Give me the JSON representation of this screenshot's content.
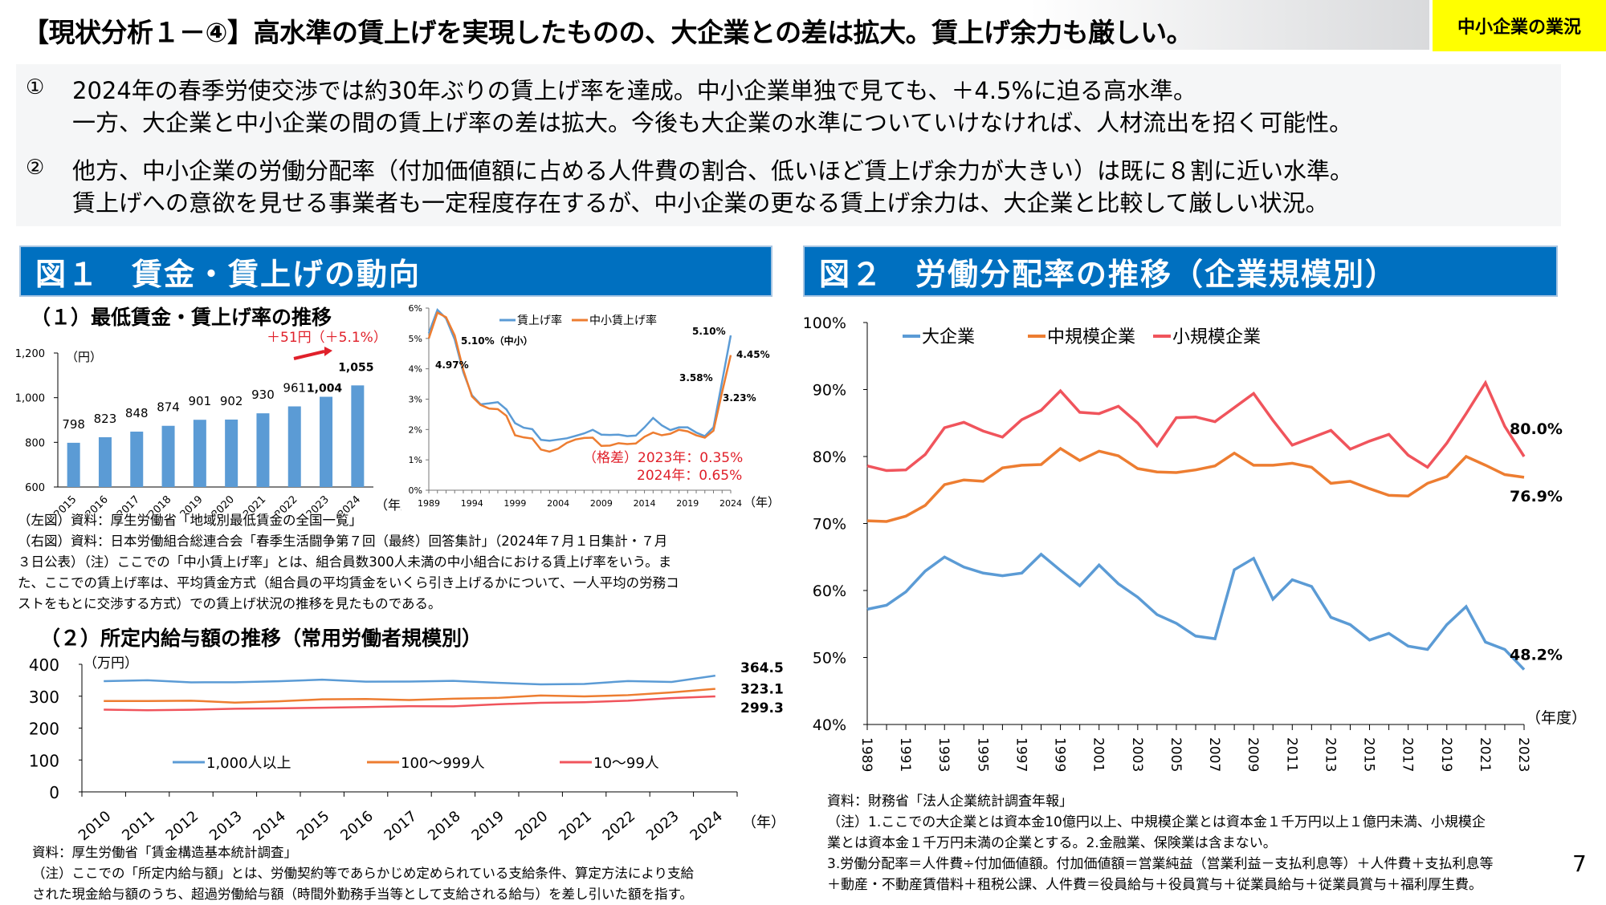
{
  "header": {
    "title": "【現状分析１－④】高水準の賃上げを実現したものの、大企業との差は拡大。賃上げ余力も厳しい。",
    "tag": "中小企業の業況"
  },
  "summary": {
    "items": [
      {
        "marker": "①",
        "lines": [
          "2024年の春季労使交渉では約30年ぶりの賃上げ率を達成。中小企業単独で見ても、＋4.5%に迫る高水準。",
          "一方、大企業と中小企業の間の賃上げ率の差は拡大。今後も大企業の水準についていけなければ、人材流出を招く可能性。"
        ]
      },
      {
        "marker": "②",
        "lines": [
          "他方、中小企業の労働分配率（付加価値額に占める人件費の割合、低いほど賃上げ余力が大きい）は既に８割に近い水準。",
          "賃上げへの意欲を見せる事業者も一定程度存在するが、中小企業の更なる賃上げ余力は、大企業と比較して厳しい状況。"
        ]
      }
    ]
  },
  "fig1": {
    "header": "図１　賃金・賃上げの動向",
    "sub1": "（１）最低賃金・賃上げ率の推移",
    "sub2": "（２）所定内給与額の推移（常用労働者規模別）",
    "notes1": [
      "（左図）資料：厚生労働省「地域別最低賃金の全国一覧」",
      "（右図）資料：日本労働組合総連合会「春季生活闘争第７回（最終）回答集計」（2024年７月１日集計・７月",
      "３日公表）（注）ここでの「中小賃上げ率」とは、組合員数300人未満の中小組合における賃上げ率をいう。ま",
      "た、ここでの賃上げ率は、平均賃金方式（組合員の平均賃金をいくら引き上げるかについて、一人平均の労務コ",
      "ストをもとに交渉する方式）での賃上げ状況の推移を見たものである。"
    ],
    "notes2": [
      "資料：厚生労働省「賃金構造基本統計調査」",
      "（注）ここでの「所定内給与額」とは、労働契約等であらかじめ定められている支給条件、算定方法により支給",
      "された現金給与額のうち、超過労働給与額（時間外勤務手当等として支給される給与）を差し引いた額を指す。"
    ]
  },
  "fig2": {
    "header": "図２　労働分配率の推移（企業規模別）",
    "notes": [
      "資料：財務省「法人企業統計調査年報」",
      "（注）1.ここでの大企業とは資本金10億円以上、中規模企業とは資本金１千万円以上１億円未満、小規模企",
      "業とは資本金１千万円未満の企業とする。2.金融業、保険業は含まない。",
      "3.労働分配率＝人件費÷付加価値額。付加価値額＝営業純益（営業利益－支払利息等）＋人件費＋支払利息等",
      "＋動産・不動産賃借料＋租税公課、人件費＝役員給与＋役員賞与＋従業員給与＋従業員賞与＋福利厚生費。"
    ]
  },
  "page_number": "7",
  "colors": {
    "blue": "#5b9bd5",
    "orange": "#ed7d31",
    "red": "#f0545c",
    "header_blue": "#0070c0",
    "annot_red": "#e0202a",
    "tag_yellow": "#ffff00"
  },
  "chart_data": [
    {
      "id": "min-wage",
      "type": "bar",
      "title": "最低賃金",
      "categories": [
        "2015",
        "2016",
        "2017",
        "2018",
        "2019",
        "2020",
        "2021",
        "2022",
        "2023",
        "2024"
      ],
      "values": [
        798,
        823,
        848,
        874,
        901,
        902,
        930,
        961,
        1004,
        1055
      ],
      "data_labels": [
        "798",
        "823",
        "848",
        "874",
        "901",
        "902",
        "930",
        "961",
        "1,004",
        "1,055"
      ],
      "ylim": [
        600,
        1200
      ],
      "yticks": [
        "600",
        "800",
        "1,000",
        "1,200"
      ],
      "ylabel": "（円）",
      "xlabel": "（年度）",
      "annotation": "＋51円（＋5.1%）"
    },
    {
      "id": "wage-increase-rate",
      "type": "line",
      "x": [
        1989,
        1990,
        1991,
        1992,
        1993,
        1994,
        1995,
        1996,
        1997,
        1998,
        1999,
        2000,
        2001,
        2002,
        2003,
        2004,
        2005,
        2006,
        2007,
        2008,
        2009,
        2010,
        2011,
        2012,
        2013,
        2014,
        2015,
        2016,
        2017,
        2018,
        2019,
        2020,
        2021,
        2022,
        2023,
        2024
      ],
      "series": [
        {
          "name": "賃上げ率",
          "values": [
            5.17,
            5.94,
            5.66,
            4.97,
            3.89,
            3.13,
            2.83,
            2.86,
            2.9,
            2.66,
            2.21,
            2.06,
            2.01,
            1.66,
            1.63,
            1.67,
            1.71,
            1.79,
            1.87,
            1.99,
            1.83,
            1.82,
            1.83,
            1.78,
            1.8,
            2.07,
            2.38,
            2.14,
            1.98,
            2.07,
            2.07,
            1.9,
            1.78,
            2.07,
            3.58,
            5.1
          ]
        },
        {
          "name": "中小賃上げ率",
          "values": [
            5.0,
            5.85,
            5.7,
            5.1,
            3.96,
            3.09,
            2.81,
            2.69,
            2.67,
            2.45,
            1.81,
            1.74,
            1.7,
            1.34,
            1.27,
            1.37,
            1.56,
            1.67,
            1.72,
            1.73,
            1.46,
            1.47,
            1.55,
            1.52,
            1.54,
            1.76,
            1.9,
            1.81,
            1.86,
            1.99,
            1.94,
            1.81,
            1.73,
            1.96,
            3.23,
            4.45
          ]
        }
      ],
      "ylim": [
        0,
        6
      ],
      "yticks": [
        "0%",
        "1%",
        "2%",
        "3%",
        "4%",
        "5%",
        "6%"
      ],
      "xticks": [
        "1989",
        "1994",
        "1999",
        "2004",
        "2009",
        "2014",
        "2019",
        "2024"
      ],
      "xlabel": "（年）",
      "data_labels": {
        "a": "5.10%（中小）",
        "b": "4.97%",
        "c": "5.10%",
        "d": "4.45%",
        "e": "3.58%",
        "f": "3.23%"
      },
      "annotation": [
        "（格差）2023年：0.35%",
        "2024年：0.65%"
      ]
    },
    {
      "id": "scheduled-wage",
      "type": "line",
      "x": [
        "2010",
        "2011",
        "2012",
        "2013",
        "2014",
        "2015",
        "2016",
        "2017",
        "2018",
        "2019",
        "2020",
        "2021",
        "2022",
        "2023",
        "2024"
      ],
      "series": [
        {
          "name": "1,000人以上",
          "values": [
            347.2,
            349.9,
            343.5,
            343.8,
            346.7,
            351.8,
            345.7,
            346.0,
            348.1,
            342.1,
            337.2,
            338.4,
            347.6,
            344.8,
            364.5
          ]
        },
        {
          "name": "100～999人",
          "values": [
            285.0,
            285.0,
            286.0,
            280.0,
            283.9,
            290.1,
            291.2,
            288.0,
            292.2,
            294.5,
            302.1,
            299.5,
            303.3,
            312.0,
            323.1
          ]
        },
        {
          "name": "10～99人",
          "values": [
            258.0,
            256.0,
            257.6,
            260.8,
            262.0,
            263.7,
            266.1,
            268.6,
            268.2,
            274.4,
            279.4,
            281.2,
            285.9,
            294.0,
            299.3
          ]
        }
      ],
      "ylim": [
        0,
        400
      ],
      "yticks": [
        "0",
        "100",
        "200",
        "300",
        "400"
      ],
      "ylabel": "（万円）",
      "xlabel": "（年）",
      "end_labels": [
        "364.5",
        "323.1",
        "299.3"
      ]
    },
    {
      "id": "labor-share",
      "type": "line",
      "x": [
        1989,
        1990,
        1991,
        1992,
        1993,
        1994,
        1995,
        1996,
        1997,
        1998,
        1999,
        2000,
        2001,
        2002,
        2003,
        2004,
        2005,
        2006,
        2007,
        2008,
        2009,
        2010,
        2011,
        2012,
        2013,
        2014,
        2015,
        2016,
        2017,
        2018,
        2019,
        2020,
        2021,
        2022,
        2023
      ],
      "series": [
        {
          "name": "大企業",
          "values": [
            57.2,
            57.8,
            59.8,
            62.9,
            65.0,
            63.5,
            62.6,
            62.2,
            62.6,
            65.4,
            63.0,
            60.7,
            63.8,
            61.0,
            59.0,
            56.4,
            55.1,
            53.2,
            52.8,
            63.1,
            64.8,
            58.7,
            61.6,
            60.6,
            56.0,
            54.9,
            52.6,
            53.6,
            51.7,
            51.2,
            54.9,
            57.6,
            52.3,
            51.2,
            48.2
          ]
        },
        {
          "name": "中規模企業",
          "values": [
            70.4,
            70.3,
            71.1,
            72.7,
            75.8,
            76.5,
            76.3,
            78.3,
            78.7,
            78.8,
            81.2,
            79.4,
            80.8,
            80.1,
            78.2,
            77.7,
            77.6,
            78.0,
            78.6,
            80.5,
            78.7,
            78.7,
            79.0,
            78.4,
            76.0,
            76.3,
            75.2,
            74.2,
            74.1,
            76.0,
            77.0,
            80.0,
            78.7,
            77.3,
            76.9
          ]
        },
        {
          "name": "小規模企業",
          "values": [
            78.6,
            77.9,
            78.0,
            80.3,
            84.3,
            85.1,
            83.8,
            82.9,
            85.5,
            86.9,
            89.8,
            86.6,
            86.4,
            87.5,
            85.0,
            81.6,
            85.8,
            85.9,
            85.2,
            87.3,
            89.4,
            85.4,
            81.7,
            82.8,
            83.9,
            81.1,
            82.3,
            83.3,
            80.2,
            78.4,
            82.0,
            86.4,
            91.0,
            84.5,
            80.0
          ]
        }
      ],
      "ylim": [
        40,
        100
      ],
      "yticks": [
        "40%",
        "50%",
        "60%",
        "70%",
        "80%",
        "90%",
        "100%"
      ],
      "xticks": [
        "1989",
        "1991",
        "1993",
        "1995",
        "1997",
        "1999",
        "2001",
        "2003",
        "2005",
        "2007",
        "2009",
        "2011",
        "2013",
        "2015",
        "2017",
        "2019",
        "2021",
        "2023"
      ],
      "xlabel": "（年度）",
      "end_labels": [
        "48.2%",
        "76.9%",
        "80.0%"
      ]
    }
  ]
}
